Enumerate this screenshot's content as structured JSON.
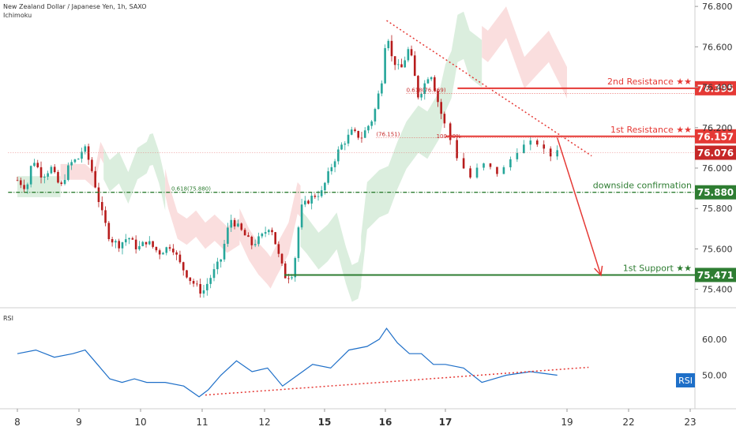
{
  "header": {
    "title": "New Zealand Dollar / Japanese Yen, 1h, SAXO",
    "indicator": "Ichimoku"
  },
  "colors": {
    "bull_candle": "#26a69a",
    "bear_candle": "#b71c1c",
    "resistance": "#e53935",
    "support": "#2e7d32",
    "rsi_line": "#1e6fc8",
    "trend_dotted": "#e53935",
    "cloud_bull": "#cfe8d3",
    "cloud_bear": "#f8d3d3"
  },
  "chart_data": [
    {
      "type": "candlestick",
      "title": "New Zealand Dollar / Japanese Yen, 1h, SAXO",
      "ylim": [
        75.34,
        76.82
      ],
      "xlim": [
        7.85,
        23.1
      ],
      "yticks": [
        "76.800",
        "76.600",
        "76.400",
        "76.200",
        "76.000",
        "75.800",
        "75.600",
        "75.400"
      ],
      "xticks": [
        "8",
        "9",
        "10",
        "11",
        "12",
        "15",
        "16",
        "17",
        "19",
        "22",
        "23"
      ],
      "xtick_positions": [
        8,
        9,
        10,
        11,
        12,
        13,
        14,
        15,
        16,
        17,
        18
      ],
      "bold_xticks": [
        "15",
        "16",
        "17"
      ],
      "price_path": [
        [
          8.0,
          75.94
        ],
        [
          8.15,
          75.9
        ],
        [
          8.25,
          76.05
        ],
        [
          8.4,
          75.96
        ],
        [
          8.55,
          76.0
        ],
        [
          8.7,
          75.9
        ],
        [
          8.85,
          76.02
        ],
        [
          9.0,
          76.05
        ],
        [
          9.08,
          76.11
        ],
        [
          9.2,
          76.0
        ],
        [
          9.35,
          75.8
        ],
        [
          9.5,
          75.65
        ],
        [
          9.65,
          75.62
        ],
        [
          9.8,
          75.66
        ],
        [
          9.95,
          75.6
        ],
        [
          10.1,
          75.64
        ],
        [
          10.3,
          75.58
        ],
        [
          10.5,
          75.62
        ],
        [
          10.65,
          75.52
        ],
        [
          10.8,
          75.45
        ],
        [
          10.95,
          75.4
        ],
        [
          11.0,
          75.38
        ],
        [
          11.1,
          75.44
        ],
        [
          11.3,
          75.55
        ],
        [
          11.45,
          75.75
        ],
        [
          11.6,
          75.7
        ],
        [
          11.8,
          75.62
        ],
        [
          11.95,
          75.66
        ],
        [
          12.1,
          75.72
        ],
        [
          12.25,
          75.55
        ],
        [
          12.35,
          75.46
        ],
        [
          12.48,
          75.48
        ],
        [
          12.6,
          75.8
        ],
        [
          12.8,
          75.86
        ],
        [
          12.95,
          75.88
        ],
        [
          13.1,
          76.0
        ],
        [
          13.25,
          76.1
        ],
        [
          13.45,
          76.18
        ],
        [
          13.6,
          76.15
        ],
        [
          13.8,
          76.25
        ],
        [
          13.95,
          76.45
        ],
        [
          14.02,
          76.7
        ],
        [
          14.1,
          76.55
        ],
        [
          14.25,
          76.48
        ],
        [
          14.4,
          76.6
        ],
        [
          14.55,
          76.35
        ],
        [
          14.75,
          76.48
        ],
        [
          14.9,
          76.3
        ],
        [
          15.0,
          76.2
        ],
        [
          15.1,
          76.05
        ],
        [
          15.2,
          75.95
        ],
        [
          15.3,
          76.02
        ],
        [
          15.45,
          75.97
        ],
        [
          15.6,
          76.1
        ],
        [
          15.75,
          76.13
        ],
        [
          15.85,
          76.05
        ],
        [
          15.92,
          76.1
        ]
      ],
      "price_labels": [
        {
          "label": "2nd Resistance ★★",
          "value": "76.395",
          "y": 76.395,
          "x_start": 15.1,
          "role": "resistance"
        },
        {
          "label": "1st Resistance ★★",
          "value": "76.157",
          "y": 76.157,
          "x_start": 15.0,
          "role": "resistance"
        },
        {
          "label": "",
          "value": "76.076",
          "y": 76.076,
          "x_start": 7.85,
          "role": "current"
        },
        {
          "label": "downside confirmation",
          "value": "75.880",
          "y": 75.88,
          "x_start": 7.85,
          "role": "support"
        },
        {
          "label": "1st Support ★★",
          "value": "75.471",
          "y": 75.471,
          "x_start": 12.33,
          "role": "support"
        }
      ],
      "fib_annotations": [
        {
          "text": "0.618(76.369)",
          "x": 14.35,
          "y": 76.369
        },
        {
          "text": "(76.151)",
          "x": 13.85,
          "y": 76.151
        },
        {
          "text": "100.00%",
          "x": 14.85,
          "y": 76.14
        },
        {
          "text": "0.618(75.880)",
          "x": 10.5,
          "y": 75.88
        }
      ],
      "descending_trendline": [
        [
          14.02,
          76.73
        ],
        [
          16.4,
          76.06
        ]
      ],
      "projection_arrow": [
        [
          15.92,
          76.15
        ],
        [
          16.55,
          75.47
        ]
      ]
    },
    {
      "type": "line",
      "title": "RSI",
      "ylim": [
        42,
        67
      ],
      "yticks": [
        "60.00",
        "50.00"
      ],
      "current_label": "RSI",
      "values": [
        [
          8.0,
          56
        ],
        [
          8.3,
          57
        ],
        [
          8.6,
          55
        ],
        [
          8.9,
          56
        ],
        [
          9.1,
          57
        ],
        [
          9.3,
          53
        ],
        [
          9.5,
          49
        ],
        [
          9.7,
          48
        ],
        [
          9.9,
          49
        ],
        [
          10.1,
          48
        ],
        [
          10.4,
          48
        ],
        [
          10.7,
          47
        ],
        [
          10.95,
          44
        ],
        [
          11.1,
          46
        ],
        [
          11.3,
          50
        ],
        [
          11.55,
          54
        ],
        [
          11.8,
          51
        ],
        [
          12.05,
          52
        ],
        [
          12.3,
          47
        ],
        [
          12.55,
          50
        ],
        [
          12.8,
          53
        ],
        [
          13.1,
          52
        ],
        [
          13.4,
          57
        ],
        [
          13.7,
          58
        ],
        [
          13.9,
          60
        ],
        [
          14.02,
          63
        ],
        [
          14.2,
          59
        ],
        [
          14.4,
          56
        ],
        [
          14.6,
          56
        ],
        [
          14.8,
          53
        ],
        [
          15.0,
          53
        ],
        [
          15.15,
          52
        ],
        [
          15.3,
          48
        ],
        [
          15.5,
          50
        ],
        [
          15.7,
          51
        ],
        [
          15.92,
          50
        ]
      ],
      "trendline": [
        [
          11.05,
          44.5
        ],
        [
          16.35,
          52.2
        ]
      ]
    }
  ]
}
